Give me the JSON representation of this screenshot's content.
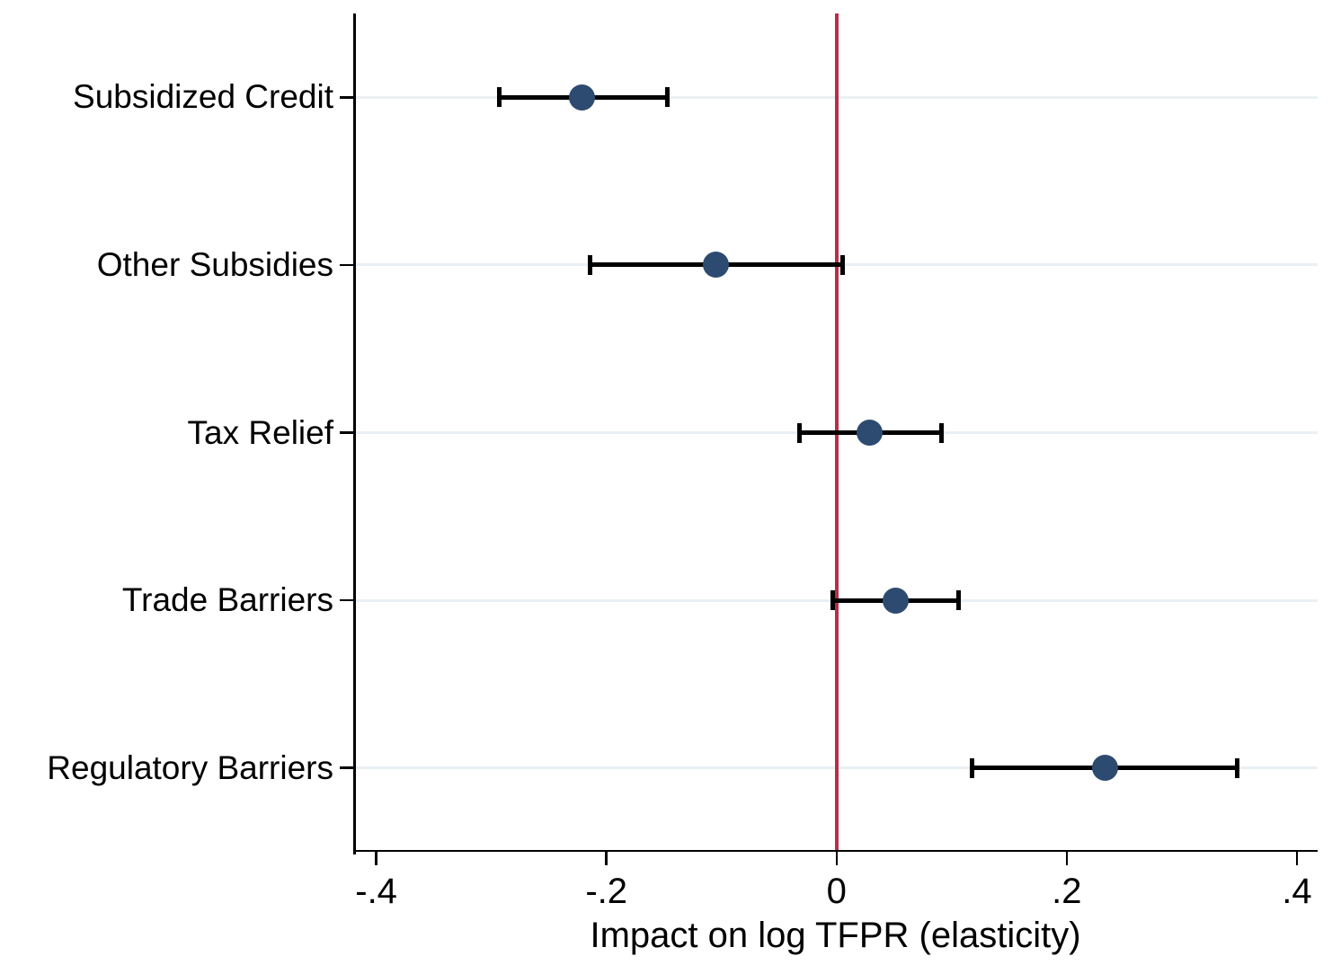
{
  "chart_data": {
    "type": "scatter",
    "subtype": "horizontal-coefficient-plot-with-confidence-intervals",
    "title": "",
    "xlabel": "Impact on log TFPR (elasticity)",
    "ylabel": "",
    "xlim": [
      -0.42,
      0.418
    ],
    "x_ticks": [
      -0.4,
      -0.2,
      0,
      0.2,
      0.4
    ],
    "x_tick_labels": [
      "-.4",
      "-.2",
      "0",
      ".2",
      ".4"
    ],
    "reference_line_x": 0,
    "grid": "horizontal-gridline-per-category",
    "legend": "none",
    "categories": [
      "Subsidized Credit",
      "Other Subsidies",
      "Tax Relief",
      "Trade Barriers",
      "Regulatory Barriers"
    ],
    "points": [
      {
        "label": "Subsidized Credit",
        "estimate": -0.221,
        "ci_low": -0.293,
        "ci_high": -0.147
      },
      {
        "label": "Other Subsidies",
        "estimate": -0.105,
        "ci_low": -0.214,
        "ci_high": 0.005
      },
      {
        "label": "Tax Relief",
        "estimate": 0.029,
        "ci_low": -0.032,
        "ci_high": 0.091
      },
      {
        "label": "Trade Barriers",
        "estimate": 0.051,
        "ci_low": -0.003,
        "ci_high": 0.106
      },
      {
        "label": "Regulatory Barriers",
        "estimate": 0.233,
        "ci_low": 0.118,
        "ci_high": 0.348
      }
    ],
    "colors": {
      "marker": "#2d4b70",
      "ci": "#000000",
      "reference_line": "#b62e48",
      "gridline": "#e9f0f4",
      "axis": "#000000",
      "text": "#000000",
      "background": "#ffffff"
    }
  }
}
